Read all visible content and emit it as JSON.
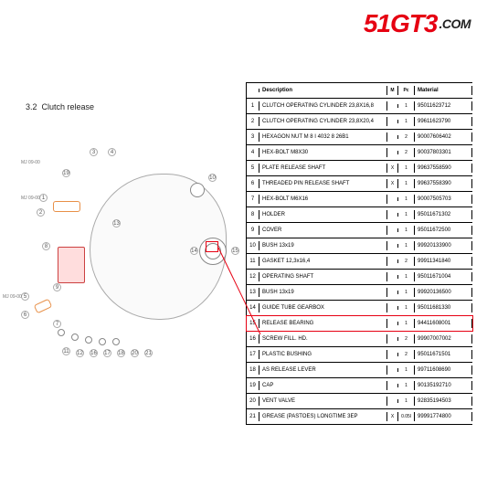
{
  "logo": {
    "text": "51GT3",
    "suffix": ".COM",
    "brand_color": "#e60012"
  },
  "section": {
    "number": "3.2",
    "title": "Clutch release"
  },
  "table": {
    "header": {
      "no": "",
      "desc": "Description",
      "m": "M",
      "pc": "Pc",
      "mat": "Material"
    },
    "highlight_row": 15,
    "rows": [
      {
        "no": "1",
        "desc": "CLUTCH OPERATING CYLINDER 23,8X16,8",
        "m": "",
        "pc": "1",
        "mat": "95011623712"
      },
      {
        "no": "2",
        "desc": "CLUTCH OPERATING CYLINDER 23,8X20,4",
        "m": "",
        "pc": "1",
        "mat": "99611623790"
      },
      {
        "no": "3",
        "desc": "HEXAGON NUT M 8 I 4032 8 26B1",
        "m": "",
        "pc": "2",
        "mat": "90007606402"
      },
      {
        "no": "4",
        "desc": "HEX-BOLT M8X30",
        "m": "",
        "pc": "2",
        "mat": "90037803301"
      },
      {
        "no": "5",
        "desc": "PLATE RELEASE SHAFT",
        "m": "X",
        "pc": "1",
        "mat": "99637558590"
      },
      {
        "no": "6",
        "desc": "THREADED PIN RELEASE SHAFT",
        "m": "X",
        "pc": "1",
        "mat": "99637558390"
      },
      {
        "no": "7",
        "desc": "HEX-BOLT M6X16",
        "m": "",
        "pc": "1",
        "mat": "90007505703"
      },
      {
        "no": "8",
        "desc": "HOLDER",
        "m": "",
        "pc": "1",
        "mat": "95011671302"
      },
      {
        "no": "9",
        "desc": "COVER",
        "m": "",
        "pc": "1",
        "mat": "95011672500"
      },
      {
        "no": "10",
        "desc": "BUSH 13x19",
        "m": "",
        "pc": "1",
        "mat": "99920133900"
      },
      {
        "no": "11",
        "desc": "GASKET 12,3x16,4",
        "m": "",
        "pc": "2",
        "mat": "99911341840"
      },
      {
        "no": "12",
        "desc": "OPERATING SHAFT",
        "m": "",
        "pc": "1",
        "mat": "95011671004"
      },
      {
        "no": "13",
        "desc": "BUSH 13x19",
        "m": "",
        "pc": "1",
        "mat": "99920136500"
      },
      {
        "no": "14",
        "desc": "GUIDE TUBE GEARBOX",
        "m": "",
        "pc": "1",
        "mat": "95011681330"
      },
      {
        "no": "15",
        "desc": "RELEASE BEARING",
        "m": "",
        "pc": "1",
        "mat": "94411608001"
      },
      {
        "no": "16",
        "desc": "SCREW FILL. HD.",
        "m": "",
        "pc": "2",
        "mat": "99907007002"
      },
      {
        "no": "17",
        "desc": "PLASTIC BUSHING",
        "m": "",
        "pc": "2",
        "mat": "95011671501"
      },
      {
        "no": "18",
        "desc": "AS RELEASE LEVER",
        "m": "",
        "pc": "1",
        "mat": "99711608690"
      },
      {
        "no": "19",
        "desc": "CAP",
        "m": "",
        "pc": "1",
        "mat": "90135192710"
      },
      {
        "no": "20",
        "desc": "VENT VALVE",
        "m": "",
        "pc": "1",
        "mat": "92835194503"
      },
      {
        "no": "21",
        "desc": "GREASE (PASTOES) LONGTIME 3EP",
        "m": "X",
        "pc": "0.05l",
        "mat": "99991774800"
      }
    ]
  },
  "diagram": {
    "tags": [
      "MJ 09-00",
      "MJ 09-00",
      "MJ 09-00"
    ],
    "bubble_markers": [
      "1",
      "2",
      "3",
      "4",
      "5",
      "6",
      "7",
      "8",
      "9",
      "10",
      "11",
      "12",
      "13",
      "14",
      "15",
      "16",
      "17",
      "18",
      "19",
      "20",
      "21"
    ]
  }
}
